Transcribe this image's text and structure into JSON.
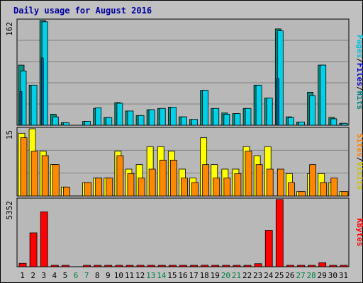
{
  "title": "Daily usage for August 2016",
  "chart_data": {
    "type": "bar",
    "categories": [
      "1",
      "2",
      "3",
      "4",
      "5",
      "6",
      "7",
      "8",
      "9",
      "10",
      "11",
      "12",
      "13",
      "14",
      "15",
      "16",
      "17",
      "18",
      "19",
      "20",
      "21",
      "22",
      "23",
      "24",
      "25",
      "26",
      "27",
      "28",
      "29",
      "30",
      "31"
    ],
    "weekend_days": [
      "6",
      "7",
      "13",
      "14",
      "20",
      "21",
      "27",
      "28"
    ],
    "colors": {
      "hits": "#009080",
      "files": "#00d0e8",
      "pages": "#0060a0",
      "visits": "#ffff00",
      "sites": "#ff8800",
      "kbytes": "#ff0000",
      "weekday_label": "#000000",
      "weekend_label": "#008040",
      "label_pages": "#00c0d8",
      "label_files": "#0000c0",
      "label_hits": "#008080",
      "label_sites": "#ff8000",
      "label_visits": "#d0c000",
      "label_kbytes": "#ff0000"
    },
    "panels": [
      {
        "id": "hits_files_pages",
        "max_label": "162",
        "ylim": [
          0,
          162
        ],
        "legend": [
          "Pages",
          "Files",
          "Hits"
        ],
        "series": [
          {
            "name": "Hits",
            "values": [
              93,
              62,
              162,
              17,
              4,
              0,
              6,
              26,
              12,
              35,
              22,
              15,
              24,
              26,
              28,
              13,
              9,
              54,
              26,
              19,
              18,
              26,
              62,
              42,
              149,
              13,
              5,
              51,
              93,
              12,
              3
            ]
          },
          {
            "name": "Files",
            "values": [
              84,
              62,
              160,
              13,
              4,
              0,
              6,
              27,
              12,
              34,
              22,
              15,
              24,
              26,
              28,
              13,
              9,
              54,
              26,
              17,
              18,
              26,
              62,
              42,
              146,
              12,
              5,
              46,
              93,
              10,
              3
            ]
          },
          {
            "name": "Pages",
            "values": [
              52,
              0,
              104,
              0,
              0,
              0,
              0,
              0,
              0,
              0,
              0,
              0,
              0,
              0,
              0,
              0,
              0,
              0,
              0,
              0,
              0,
              0,
              0,
              0,
              72,
              0,
              0,
              0,
              0,
              0,
              0
            ]
          }
        ]
      },
      {
        "id": "visits_sites",
        "max_label": "15",
        "ylim": [
          0,
          15
        ],
        "legend": [
          "Sites",
          "Visits"
        ],
        "series": [
          {
            "name": "Visits",
            "values": [
              14,
              15,
              10,
              7,
              2,
              0,
              3,
              4,
              4,
              10,
              6,
              7,
              11,
              11,
              10,
              6,
              4,
              13,
              7,
              6,
              6,
              11,
              9,
              11,
              0,
              5,
              1,
              5,
              5,
              3,
              1
            ]
          },
          {
            "name": "Sites",
            "values": [
              13,
              10,
              9,
              7,
              2,
              0,
              3,
              4,
              4,
              9,
              5,
              4,
              6,
              8,
              8,
              4,
              3,
              7,
              4,
              4,
              5,
              10,
              7,
              6,
              6,
              3,
              1,
              7,
              3,
              4,
              1
            ]
          }
        ]
      },
      {
        "id": "kbytes",
        "max_label": "5352",
        "ylim": [
          0,
          5352
        ],
        "legend": [
          "KBytes"
        ],
        "series": [
          {
            "name": "KBytes",
            "values": [
              270,
              2700,
              4370,
              50,
              30,
              0,
              30,
              30,
              30,
              30,
              30,
              30,
              30,
              80,
              60,
              30,
              30,
              120,
              70,
              30,
              30,
              30,
              240,
              2900,
              5352,
              30,
              50,
              60,
              320,
              40,
              30
            ]
          }
        ]
      }
    ]
  }
}
